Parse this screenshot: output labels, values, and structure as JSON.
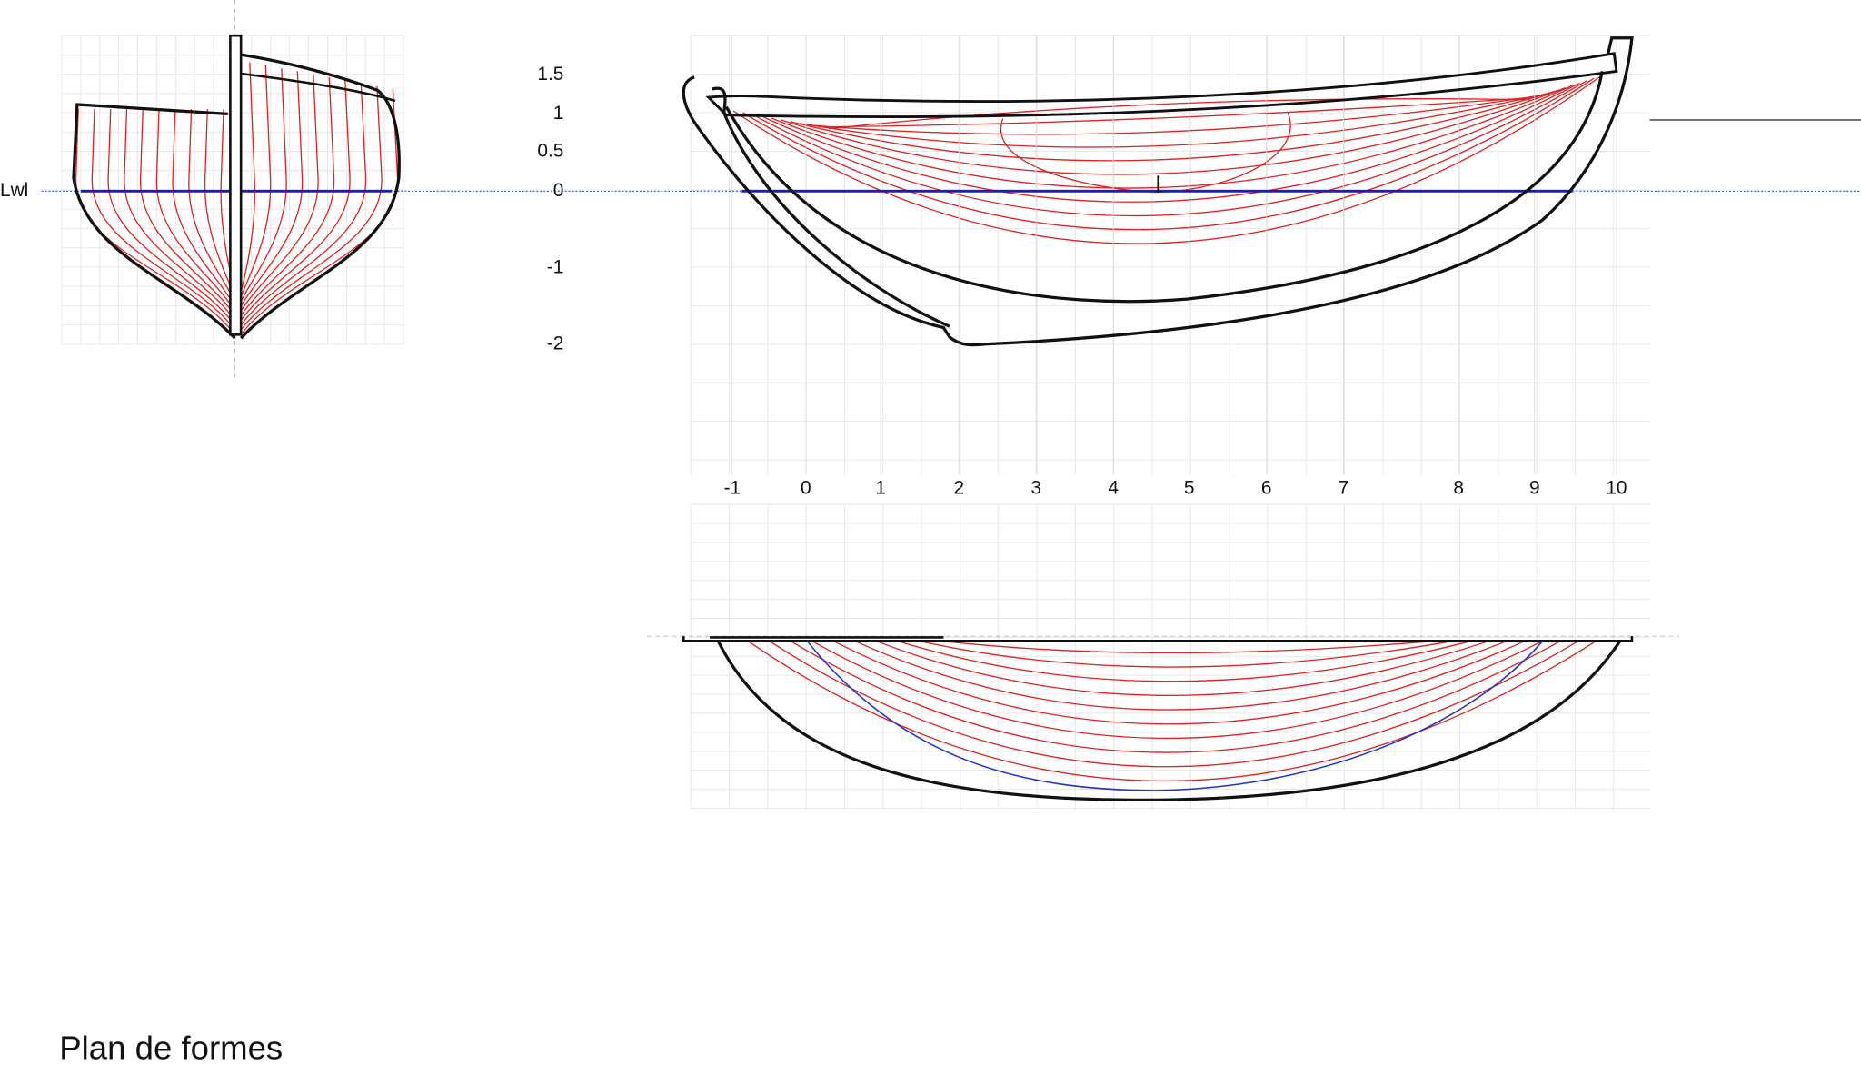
{
  "title": "Plan de formes",
  "waterline_label": "Lwl",
  "height_scale": [
    "1.5",
    "1",
    "0.5",
    "0",
    "-1",
    "-2"
  ],
  "stations": [
    "-1",
    "0",
    "1",
    "2",
    "3",
    "4",
    "5",
    "6",
    "7",
    "8",
    "9",
    "10"
  ]
}
